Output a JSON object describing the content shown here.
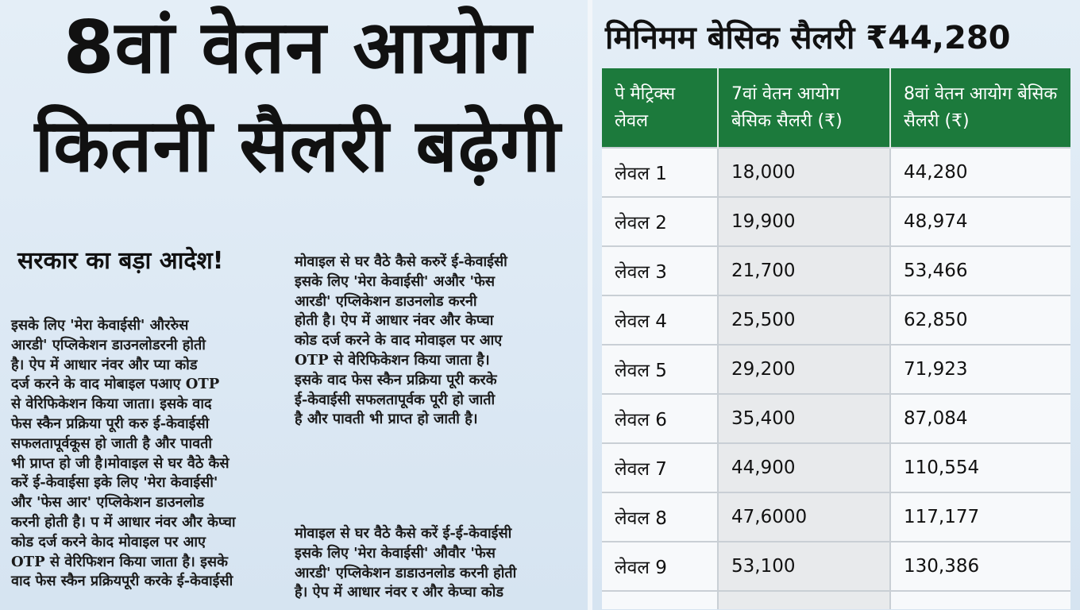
{
  "headline": {
    "line1": "8वां वेतन आयोग",
    "line2": "कितनी सैलरी बढ़ेगी"
  },
  "subhead": "सरकार का बड़ा आदेश!",
  "column1": [
    "इसके लिए 'मेरा केवाईसी' औररुेस",
    "आरडी' एप्लिकेशन डाउनलोडरनी होती",
    "है। ऐप में आधार नंवर और प्या कोड",
    "दर्ज करने के वाद मोबाइल पआए OTP",
    "से वेरिफिकेशन किया जाता। इसके वाद",
    "फेस स्कैन प्रक्रिया पूरी करु ई-केवाईसी",
    "सफलतापूर्वकूस हो जाती है और पावती",
    "भी प्राप्त हो जी है।मोवाइल से घर वैठे कैसे",
    "करें ई-केवाईसा इके लिए 'मेरा केवाईसी'",
    "और 'फेस आर' एप्लिकेशन डाउनलोड",
    "करनी होती है। प में आधार नंवर और केप्चा",
    "कोड दर्ज करने केाद मोवाइल पर आए",
    "OTP से वेरिफिशन किया जाता है। इसके",
    "वाद फेस स्कैन प्रक्रियपूरी करके ई-केवाईसी"
  ],
  "column2": [
    "मोवाइल से घर वैठे कैसे करुरें ई-केवाईसी",
    "इसके लिए 'मेरा केवाईसी' अऔर 'फेस",
    "आरडी' एप्लिकेशन डाउनलोड करनी",
    "होती है। ऐप में आधार नंवर और केप्चा",
    "कोड दर्ज करने के वाद मोवाइल पर आए",
    "OTP से वेरिफिकेशन किया जाता है।",
    "इसके वाद फेस स्कैन प्रक्रिया पूरी करके",
    "ई-केवाईसी सफलतापूर्वक पूरी हो जाती",
    "है और पावती भी प्राप्त हो जाती है।"
  ],
  "column3": [
    "मोवाइल से घर वैठे कैसे करें ई-ई-केवाईसी",
    "इसके लिए 'मेरा केवाईसी' औवौर 'फेस",
    "आरडी' एप्लिकेशन डाडाउनलोड करनी होती",
    "है। ऐप में आधार नंवर र और केप्चा कोड"
  ],
  "table_title": "मिनिमम बेसिक सैलरी ₹44,280",
  "table": {
    "headers": [
      "पे मैट्रिक्स लेवल",
      "7वां वेतन आयोग बेसिक सैलरी (₹)",
      "8वां वेतन आयोग बेसिक सैलरी (₹)"
    ],
    "rows": [
      [
        "लेवल 1",
        "18,000",
        "44,280"
      ],
      [
        "लेवल 2",
        "19,900",
        "48,974"
      ],
      [
        "लेवल 3",
        "21,700",
        "53,466"
      ],
      [
        "लेवल 4",
        "25,500",
        "62,850"
      ],
      [
        "लेवल 5",
        "29,200",
        "71,923"
      ],
      [
        "लेवल 6",
        "35,400",
        "87,084"
      ],
      [
        "लेवल 7",
        "44,900",
        "110,554"
      ],
      [
        "लेवल 8",
        "47,6000",
        "117,177"
      ],
      [
        "लेवल 9",
        "53,100",
        "130,386"
      ]
    ]
  },
  "colors": {
    "header_green": "#1c7a3c",
    "background": "#dce8f3"
  }
}
